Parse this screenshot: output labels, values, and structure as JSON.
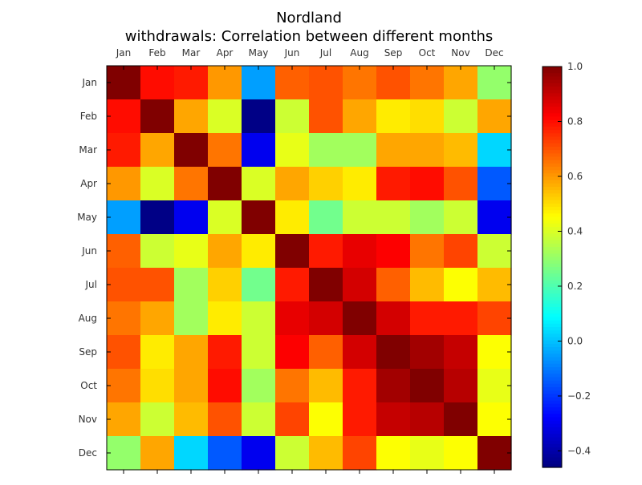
{
  "chart_data": {
    "type": "heatmap",
    "title": "Nordland",
    "subtitle": "withdrawals: Correlation between different months",
    "x_categories": [
      "Jan",
      "Feb",
      "Mar",
      "Apr",
      "May",
      "Jun",
      "Jul",
      "Aug",
      "Sep",
      "Oct",
      "Nov",
      "Dec"
    ],
    "y_categories": [
      "Jan",
      "Feb",
      "Mar",
      "Apr",
      "May",
      "Jun",
      "Jul",
      "Aug",
      "Sep",
      "Oct",
      "Nov",
      "Dec"
    ],
    "x_tick_position": "top",
    "values": [
      [
        1.0,
        0.8,
        0.78,
        0.6,
        -0.05,
        0.68,
        0.7,
        0.65,
        0.7,
        0.65,
        0.58,
        0.3
      ],
      [
        0.8,
        1.0,
        0.58,
        0.4,
        -0.45,
        0.38,
        0.7,
        0.58,
        0.48,
        0.5,
        0.38,
        0.58
      ],
      [
        0.78,
        0.58,
        1.0,
        0.65,
        -0.3,
        0.42,
        0.32,
        0.32,
        0.58,
        0.58,
        0.55,
        0.03
      ],
      [
        0.6,
        0.4,
        0.65,
        1.0,
        0.4,
        0.58,
        0.52,
        0.48,
        0.78,
        0.8,
        0.7,
        -0.15
      ],
      [
        -0.05,
        -0.45,
        -0.3,
        0.4,
        1.0,
        0.48,
        0.25,
        0.38,
        0.38,
        0.32,
        0.38,
        -0.3
      ],
      [
        0.68,
        0.38,
        0.42,
        0.58,
        0.48,
        1.0,
        0.78,
        0.85,
        0.82,
        0.65,
        0.72,
        0.38
      ],
      [
        0.7,
        0.7,
        0.32,
        0.52,
        0.25,
        0.78,
        1.0,
        0.88,
        0.68,
        0.55,
        0.45,
        0.55
      ],
      [
        0.65,
        0.58,
        0.32,
        0.48,
        0.38,
        0.85,
        0.88,
        1.0,
        0.88,
        0.78,
        0.78,
        0.72
      ],
      [
        0.7,
        0.48,
        0.58,
        0.78,
        0.38,
        0.82,
        0.68,
        0.88,
        1.0,
        0.95,
        0.9,
        0.45
      ],
      [
        0.65,
        0.5,
        0.58,
        0.8,
        0.32,
        0.65,
        0.55,
        0.78,
        0.95,
        1.0,
        0.92,
        0.42
      ],
      [
        0.58,
        0.38,
        0.55,
        0.7,
        0.38,
        0.72,
        0.45,
        0.78,
        0.9,
        0.92,
        1.0,
        0.45
      ],
      [
        0.3,
        0.58,
        0.03,
        -0.15,
        -0.3,
        0.38,
        0.55,
        0.72,
        0.45,
        0.42,
        0.45,
        1.0
      ]
    ],
    "colorscale": "jet",
    "vmin": -0.46,
    "vmax": 1.0,
    "colorbar": {
      "ticks": [
        -0.4,
        -0.2,
        0.0,
        0.2,
        0.4,
        0.6,
        0.8,
        1.0
      ],
      "tick_labels": [
        "−0.4",
        "−0.2",
        "0.0",
        "0.2",
        "0.4",
        "0.6",
        "0.8",
        "1.0"
      ],
      "placement": "right"
    },
    "grid": false
  }
}
